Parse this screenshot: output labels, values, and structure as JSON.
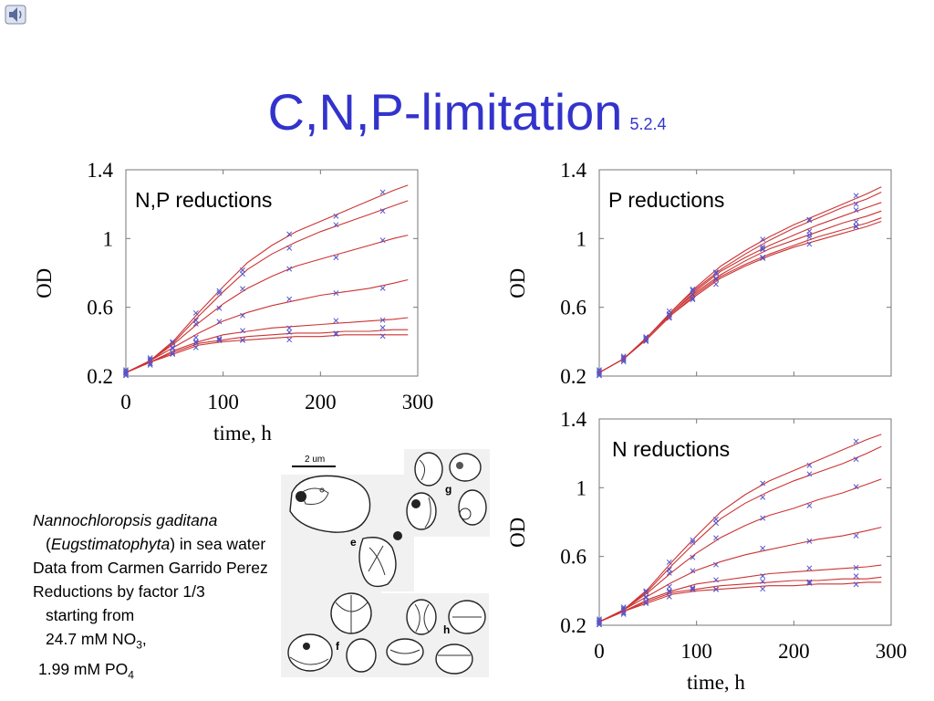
{
  "slide": {
    "title": "C,N,P-limitation",
    "title_sub": "5.2.4",
    "icon": "speaker-icon",
    "accent_color": "#3333cc"
  },
  "caption": {
    "species": "Nannochloropsis gaditana",
    "class_open": "(",
    "class_name": "Eugstimatophyta",
    "class_rest": ") in sea water",
    "line2": "Data from Carmen Garrido Perez",
    "line3": "Reductions by factor 1/3",
    "line4": "starting from",
    "no3_value": "24.7 mM NO",
    "no3_sub": "3",
    "no3_end": ",",
    "po4_value": "1.99 mM PO",
    "po4_sub": "4"
  },
  "micrograph": {
    "scale_label": "2 um",
    "panel_labels": [
      "e",
      "f",
      "g",
      "h"
    ]
  },
  "chart_data": [
    {
      "type": "line",
      "panel_label": "N,P reductions",
      "xlabel": "time, h",
      "ylabel": "OD",
      "xlim": [
        0,
        300
      ],
      "ylim": [
        0.2,
        1.4
      ],
      "xticks": [
        "0",
        "100",
        "200",
        "300"
      ],
      "yticks": [
        "0.2",
        "0.6",
        "1",
        "1.4"
      ],
      "curve_color": "#cc3333",
      "marker_color": "#5555cc",
      "marker_x": [
        0,
        25,
        48,
        72,
        96,
        120,
        168,
        216,
        264
      ],
      "series": [
        {
          "x": [
            0,
            25,
            50,
            75,
            100,
            125,
            150,
            175,
            200,
            225,
            250,
            275,
            290
          ],
          "y": [
            0.22,
            0.29,
            0.41,
            0.57,
            0.72,
            0.86,
            0.96,
            1.04,
            1.1,
            1.16,
            1.22,
            1.28,
            1.31
          ]
        },
        {
          "x": [
            0,
            25,
            50,
            75,
            100,
            125,
            150,
            175,
            200,
            225,
            250,
            275,
            290
          ],
          "y": [
            0.22,
            0.29,
            0.4,
            0.55,
            0.69,
            0.82,
            0.91,
            0.98,
            1.04,
            1.09,
            1.14,
            1.19,
            1.22
          ]
        },
        {
          "x": [
            0,
            25,
            50,
            75,
            100,
            125,
            150,
            175,
            200,
            225,
            250,
            275,
            290
          ],
          "y": [
            0.22,
            0.29,
            0.39,
            0.51,
            0.62,
            0.71,
            0.78,
            0.84,
            0.88,
            0.92,
            0.96,
            1.0,
            1.02
          ]
        },
        {
          "x": [
            0,
            25,
            50,
            75,
            100,
            125,
            150,
            175,
            200,
            225,
            250,
            275,
            290
          ],
          "y": [
            0.22,
            0.29,
            0.37,
            0.45,
            0.52,
            0.57,
            0.61,
            0.64,
            0.67,
            0.69,
            0.71,
            0.74,
            0.76
          ]
        },
        {
          "x": [
            0,
            25,
            50,
            75,
            100,
            125,
            150,
            175,
            200,
            225,
            250,
            275,
            290
          ],
          "y": [
            0.22,
            0.28,
            0.35,
            0.4,
            0.44,
            0.46,
            0.48,
            0.49,
            0.5,
            0.51,
            0.52,
            0.53,
            0.54
          ]
        },
        {
          "x": [
            0,
            25,
            50,
            75,
            100,
            125,
            150,
            175,
            200,
            225,
            250,
            275,
            290
          ],
          "y": [
            0.22,
            0.28,
            0.34,
            0.39,
            0.41,
            0.43,
            0.44,
            0.45,
            0.45,
            0.46,
            0.46,
            0.47,
            0.47
          ]
        },
        {
          "x": [
            0,
            25,
            50,
            75,
            100,
            125,
            150,
            175,
            200,
            225,
            250,
            275,
            290
          ],
          "y": [
            0.22,
            0.28,
            0.33,
            0.38,
            0.4,
            0.41,
            0.42,
            0.43,
            0.43,
            0.44,
            0.44,
            0.44,
            0.44
          ]
        }
      ]
    },
    {
      "type": "line",
      "panel_label": "P reductions",
      "xlabel": "",
      "ylabel": "OD",
      "xlim": [
        0,
        300
      ],
      "ylim": [
        0.2,
        1.4
      ],
      "xticks": [],
      "yticks": [
        "0.2",
        "0.6",
        "1",
        "1.4"
      ],
      "curve_color": "#cc3333",
      "marker_color": "#5555cc",
      "marker_x": [
        0,
        25,
        48,
        72,
        96,
        120,
        168,
        216,
        264
      ],
      "series": [
        {
          "x": [
            0,
            25,
            50,
            75,
            100,
            125,
            150,
            175,
            200,
            225,
            250,
            275,
            290
          ],
          "y": [
            0.22,
            0.3,
            0.43,
            0.58,
            0.72,
            0.84,
            0.93,
            1.01,
            1.08,
            1.14,
            1.2,
            1.26,
            1.3
          ]
        },
        {
          "x": [
            0,
            25,
            50,
            75,
            100,
            125,
            150,
            175,
            200,
            225,
            250,
            275,
            290
          ],
          "y": [
            0.22,
            0.3,
            0.43,
            0.58,
            0.71,
            0.82,
            0.91,
            0.99,
            1.06,
            1.12,
            1.18,
            1.23,
            1.27
          ]
        },
        {
          "x": [
            0,
            25,
            50,
            75,
            100,
            125,
            150,
            175,
            200,
            225,
            250,
            275,
            290
          ],
          "y": [
            0.22,
            0.3,
            0.43,
            0.57,
            0.7,
            0.81,
            0.89,
            0.96,
            1.02,
            1.08,
            1.13,
            1.18,
            1.21
          ]
        },
        {
          "x": [
            0,
            25,
            50,
            75,
            100,
            125,
            150,
            175,
            200,
            225,
            250,
            275,
            290
          ],
          "y": [
            0.22,
            0.3,
            0.43,
            0.57,
            0.69,
            0.79,
            0.87,
            0.94,
            0.99,
            1.04,
            1.09,
            1.13,
            1.16
          ]
        },
        {
          "x": [
            0,
            25,
            50,
            75,
            100,
            125,
            150,
            175,
            200,
            225,
            250,
            275,
            290
          ],
          "y": [
            0.22,
            0.3,
            0.42,
            0.56,
            0.68,
            0.78,
            0.85,
            0.91,
            0.96,
            1.01,
            1.05,
            1.09,
            1.12
          ]
        },
        {
          "x": [
            0,
            25,
            50,
            75,
            100,
            125,
            150,
            175,
            200,
            225,
            250,
            275,
            290
          ],
          "y": [
            0.22,
            0.3,
            0.42,
            0.56,
            0.67,
            0.77,
            0.84,
            0.9,
            0.95,
            0.99,
            1.03,
            1.07,
            1.1
          ]
        }
      ]
    },
    {
      "type": "line",
      "panel_label": "N reductions",
      "xlabel": "time, h",
      "ylabel": "OD",
      "xlim": [
        0,
        300
      ],
      "ylim": [
        0.2,
        1.4
      ],
      "xticks": [
        "0",
        "100",
        "200",
        "300"
      ],
      "yticks": [
        "0.2",
        "0.6",
        "1",
        "1.4"
      ],
      "curve_color": "#cc3333",
      "marker_color": "#5555cc",
      "marker_x": [
        0,
        25,
        48,
        72,
        96,
        120,
        168,
        216,
        264
      ],
      "series": [
        {
          "x": [
            0,
            25,
            50,
            75,
            100,
            125,
            150,
            175,
            200,
            225,
            250,
            275,
            290
          ],
          "y": [
            0.22,
            0.29,
            0.41,
            0.57,
            0.72,
            0.86,
            0.96,
            1.04,
            1.1,
            1.16,
            1.22,
            1.28,
            1.31
          ]
        },
        {
          "x": [
            0,
            25,
            50,
            75,
            100,
            125,
            150,
            175,
            200,
            225,
            250,
            275,
            290
          ],
          "y": [
            0.22,
            0.29,
            0.4,
            0.55,
            0.69,
            0.82,
            0.91,
            0.98,
            1.04,
            1.09,
            1.14,
            1.2,
            1.24
          ]
        },
        {
          "x": [
            0,
            25,
            50,
            75,
            100,
            125,
            150,
            175,
            200,
            225,
            250,
            275,
            290
          ],
          "y": [
            0.22,
            0.29,
            0.39,
            0.51,
            0.62,
            0.71,
            0.78,
            0.84,
            0.88,
            0.93,
            0.97,
            1.02,
            1.05
          ]
        },
        {
          "x": [
            0,
            25,
            50,
            75,
            100,
            125,
            150,
            175,
            200,
            225,
            250,
            275,
            290
          ],
          "y": [
            0.22,
            0.29,
            0.37,
            0.45,
            0.52,
            0.57,
            0.61,
            0.64,
            0.67,
            0.7,
            0.72,
            0.75,
            0.77
          ]
        },
        {
          "x": [
            0,
            25,
            50,
            75,
            100,
            125,
            150,
            175,
            200,
            225,
            250,
            275,
            290
          ],
          "y": [
            0.22,
            0.28,
            0.35,
            0.4,
            0.44,
            0.46,
            0.48,
            0.5,
            0.51,
            0.52,
            0.53,
            0.54,
            0.55
          ]
        },
        {
          "x": [
            0,
            25,
            50,
            75,
            100,
            125,
            150,
            175,
            200,
            225,
            250,
            275,
            290
          ],
          "y": [
            0.22,
            0.28,
            0.34,
            0.39,
            0.41,
            0.43,
            0.44,
            0.45,
            0.46,
            0.46,
            0.47,
            0.47,
            0.48
          ]
        },
        {
          "x": [
            0,
            25,
            50,
            75,
            100,
            125,
            150,
            175,
            200,
            225,
            250,
            275,
            290
          ],
          "y": [
            0.22,
            0.28,
            0.33,
            0.38,
            0.4,
            0.41,
            0.42,
            0.43,
            0.43,
            0.44,
            0.44,
            0.45,
            0.45
          ]
        }
      ]
    }
  ]
}
